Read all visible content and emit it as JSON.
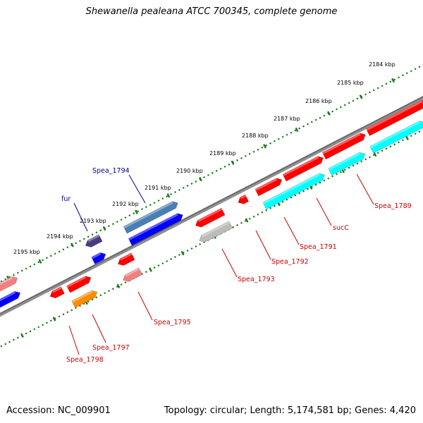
{
  "title": "Shewanella pealeana ATCC 700345, complete genome",
  "footer": {
    "accession": "Accession: NC_009901",
    "stats": "Topology: circular; Length: 5,174,581 bp; Genes: 4,420"
  },
  "ruler_labels": [
    "2184 kbp",
    "2185 kbp",
    "2186 kbp",
    "2187 kbp",
    "2188 kbp",
    "2189 kbp",
    "2190 kbp",
    "2191 kbp",
    "2192 kbp",
    "2193 kbp",
    "2194 kbp",
    "2195 kbp"
  ],
  "colors": {
    "backbone": "#808080",
    "tick": "#1a7a1a",
    "red_gene": "#ff0000",
    "cyan_gene": "#00ffff",
    "blue_gene": "#0000ff",
    "steelblue_gene": "#4a7fb5",
    "dark_gene": "#4a3a80",
    "pink_gene": "#f08080",
    "orange_gene": "#ff8c00",
    "gray_gene": "#bbbbbb",
    "label_red": "#cc0000",
    "label_blue": "#000099"
  },
  "gene_labels": [
    {
      "name": "Spea_1789",
      "color": "red"
    },
    {
      "name": "sucC",
      "color": "red"
    },
    {
      "name": "Spea_1791",
      "color": "red"
    },
    {
      "name": "Spea_1792",
      "color": "red"
    },
    {
      "name": "Spea_1793",
      "color": "red"
    },
    {
      "name": "Spea_1795",
      "color": "red"
    },
    {
      "name": "Spea_1797",
      "color": "red"
    },
    {
      "name": "Spea_1798",
      "color": "red"
    },
    {
      "name": "Spea_1794",
      "color": "blue"
    },
    {
      "name": "fur",
      "color": "blue"
    }
  ]
}
